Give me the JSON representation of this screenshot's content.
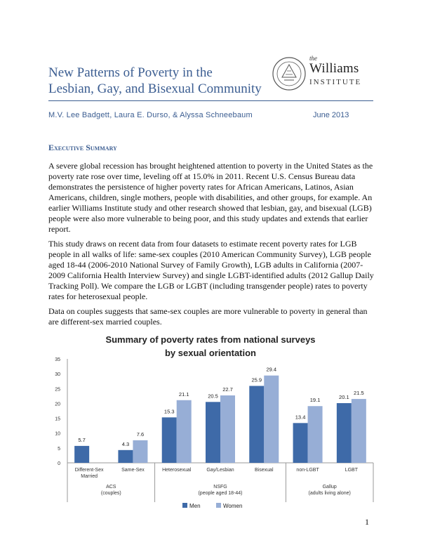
{
  "header": {
    "title_line1": "New Patterns of Poverty in the",
    "title_line2": "Lesbian, Gay, and Bisexual Community",
    "logo": {
      "the": "the",
      "name": "Williams",
      "institute": "INSTITUTE"
    },
    "authors": "M.V. Lee Badgett, Laura E. Durso, & Alyssa Schneebaum",
    "date": "June 2013"
  },
  "section_heading": "Executive Summary",
  "paragraphs": [
    "A severe global recession has brought heightened attention to poverty in the United States as the poverty rate rose over time, leveling off at 15.0% in 2011.  Recent U.S. Census Bureau data demonstrates the persistence of higher poverty rates for African Americans, Latinos, Asian Americans, children, single mothers, people with disabilities, and other groups, for example.  An earlier Williams Institute study and other research showed that lesbian, gay, and bisexual (LGB) people were also more vulnerable to being poor, and this study updates and extends that earlier report.",
    "This study draws on recent data from four datasets to estimate recent poverty rates for LGB people in all walks of life:  same-sex couples (2010 American Community Survey), LGB people aged 18-44 (2006-2010 National Survey of Family Growth), LGB adults in California (2007-2009 California Health Interview Survey) and single LGBT-identified adults (2012 Gallup Daily Tracking Poll).  We compare the LGB or LGBT (including transgender people) rates to poverty rates for heterosexual people.",
    "Data on couples suggests that same-sex couples are more vulnerable to poverty in general than are different-sex married couples."
  ],
  "chart_data": {
    "type": "bar",
    "title_line1": "Summary of poverty rates from national surveys",
    "title_line2": "by sexual orientation",
    "ylim": [
      0,
      35
    ],
    "yticks": [
      "0",
      "5",
      "10",
      "15",
      "20",
      "25",
      "30",
      "35"
    ],
    "categories": [
      [
        "Different-Sex",
        "Married"
      ],
      [
        "Same-Sex"
      ],
      [
        "Heterosexual"
      ],
      [
        "Gay/Lesbian"
      ],
      [
        "Bisexual"
      ],
      [
        "non-LGBT"
      ],
      [
        "LGBT"
      ]
    ],
    "series": [
      {
        "name": "Men",
        "color": "#3e6aa8",
        "values": [
          5.7,
          4.3,
          15.3,
          20.5,
          25.9,
          13.4,
          20.1
        ]
      },
      {
        "name": "Women",
        "color": "#97aed6",
        "values": [
          null,
          7.6,
          21.1,
          22.7,
          29.4,
          19.1,
          21.5
        ]
      }
    ],
    "value_labels": [
      [
        "5.7",
        "4.3",
        "15.3",
        "20.5",
        "25.9",
        "13.4",
        "20.1"
      ],
      [
        "",
        "7.6",
        "21.1",
        "22.7",
        "29.4",
        "19.1",
        "21.5"
      ]
    ],
    "groups": [
      {
        "label1": "ACS",
        "label2": "(couples)"
      },
      {
        "label1": "NSFG",
        "label2": "(people aged 18-44)"
      },
      {
        "label1": "Gallup",
        "label2": "(adults living alone)"
      }
    ],
    "legend_position": "bottom-center",
    "grid": false
  },
  "page_number": "1"
}
